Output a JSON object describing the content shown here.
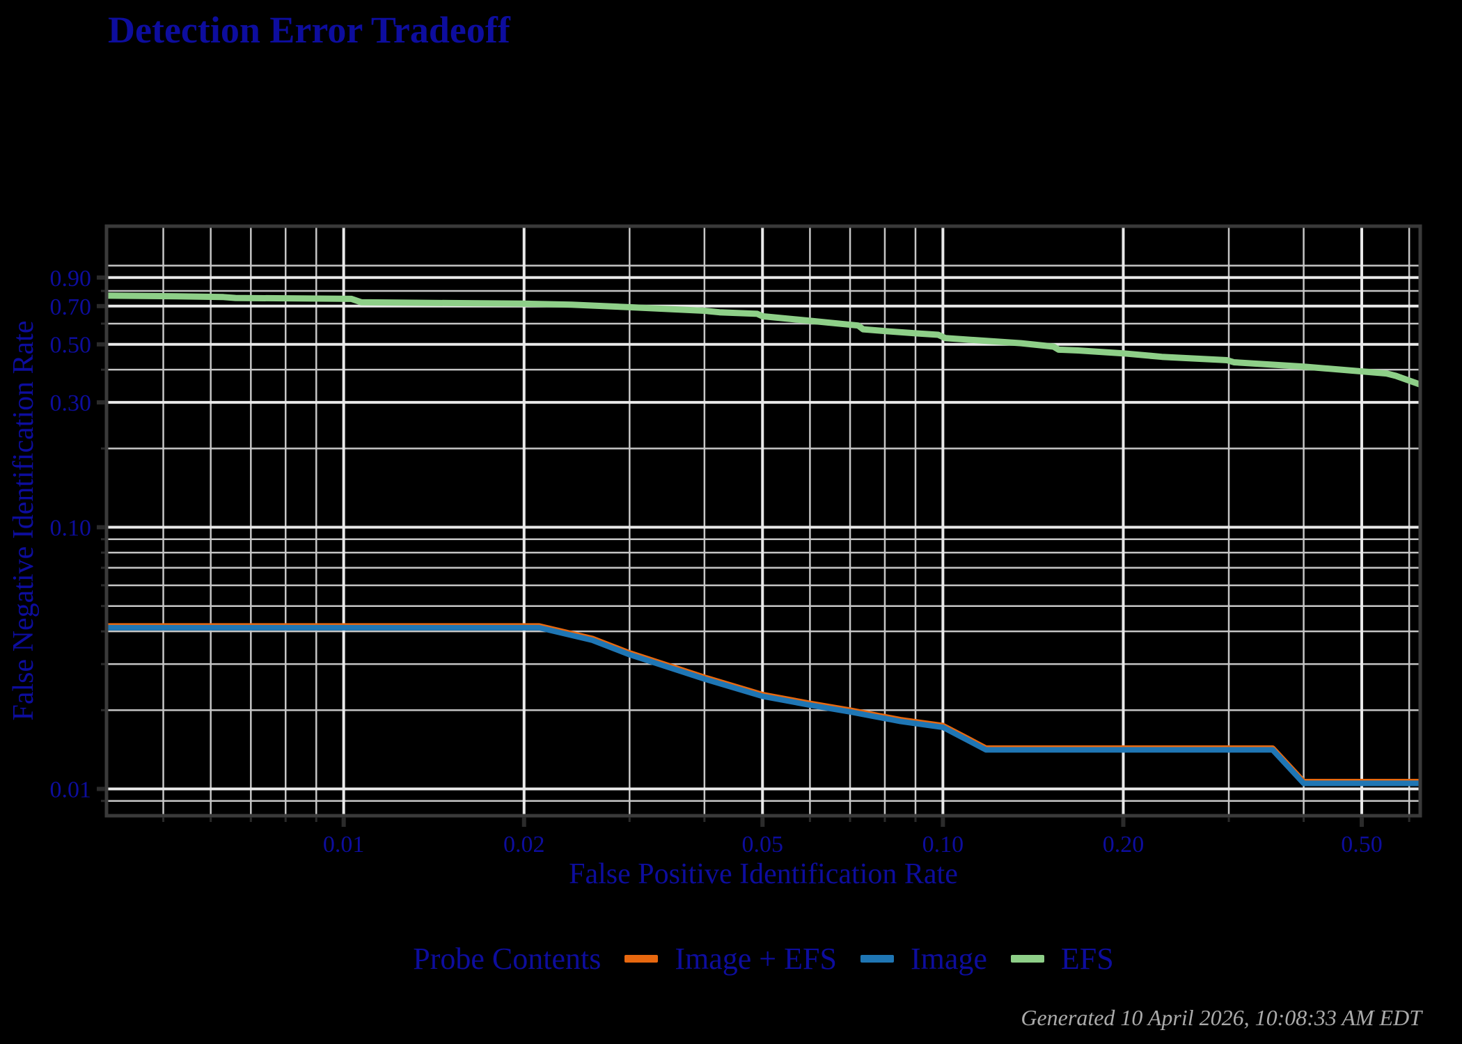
{
  "title": "Detection Error Tradeoff",
  "footer": "Generated 10 April 2026, 10:08:33 AM EDT",
  "colors": {
    "background": "#000000",
    "text_navy": "#0d0d9e",
    "footer_gray": "#ababab",
    "grid_major": "#e9e9e9",
    "grid_minor": "#c6c6c6",
    "axis_border": "#3a3a3a",
    "tick": "#2b2b2b",
    "series_image_efs": "#e8680f",
    "series_image": "#1f76b4",
    "series_efs": "#8ecf88"
  },
  "legend": {
    "title": "Probe Contents",
    "items": [
      {
        "label": "Image + EFS",
        "color": "#e8680f"
      },
      {
        "label": "Image",
        "color": "#1f76b4"
      },
      {
        "label": "EFS",
        "color": "#8ecf88"
      }
    ]
  },
  "chart_data": {
    "type": "line",
    "title": "Detection Error Tradeoff",
    "xlabel": "False Positive Identification Rate",
    "ylabel": "False Negative Identification Rate",
    "x_scale": "log10",
    "y_scale": "log10",
    "xlim": [
      0.00402,
      0.626
    ],
    "ylim": [
      0.0079,
      1.414
    ],
    "grid": true,
    "legend_position": "bottom",
    "x_major_ticks": [
      0.01,
      0.02,
      0.05,
      0.1,
      0.2,
      0.5
    ],
    "x_major_labels": [
      "0.01",
      "0.02",
      "0.05",
      "0.10",
      "0.20",
      "0.50"
    ],
    "x_minor_ticks": [
      0.005,
      0.006,
      0.007,
      0.008,
      0.009,
      0.03,
      0.04,
      0.06,
      0.07,
      0.08,
      0.09,
      0.3,
      0.4,
      0.6
    ],
    "y_major_ticks": [
      0.9,
      0.7,
      0.5,
      0.3,
      0.1,
      0.01
    ],
    "y_major_labels": [
      "0.90",
      "0.70",
      "0.50",
      "0.30",
      "0.10",
      "0.01"
    ],
    "y_minor_ticks": [
      1.0,
      0.8,
      0.6,
      0.4,
      0.2,
      0.09,
      0.08,
      0.07,
      0.06,
      0.05,
      0.04,
      0.03,
      0.02,
      0.009
    ],
    "series": [
      {
        "name": "Image + EFS",
        "color": "#e8680f",
        "note": "curve coincides with the Image curve and is hidden beneath it; only a thin sliver shows along the top edge",
        "points": [
          [
            0.00402,
            0.0413
          ],
          [
            0.0212,
            0.0413
          ],
          [
            0.026,
            0.037
          ],
          [
            0.03,
            0.0326
          ],
          [
            0.04,
            0.0263
          ],
          [
            0.05,
            0.0226
          ],
          [
            0.06,
            0.0209
          ],
          [
            0.07,
            0.0197
          ],
          [
            0.085,
            0.0181
          ],
          [
            0.1,
            0.0172
          ],
          [
            0.108,
            0.0157
          ],
          [
            0.118,
            0.0141
          ],
          [
            0.355,
            0.0141
          ],
          [
            0.4,
            0.0105
          ],
          [
            0.626,
            0.0105
          ]
        ]
      },
      {
        "name": "Image",
        "color": "#1f76b4",
        "points": [
          [
            0.00402,
            0.0413
          ],
          [
            0.0212,
            0.0413
          ],
          [
            0.026,
            0.037
          ],
          [
            0.03,
            0.0326
          ],
          [
            0.04,
            0.0263
          ],
          [
            0.05,
            0.0226
          ],
          [
            0.06,
            0.0209
          ],
          [
            0.07,
            0.0197
          ],
          [
            0.085,
            0.0181
          ],
          [
            0.1,
            0.0172
          ],
          [
            0.108,
            0.0157
          ],
          [
            0.118,
            0.0141
          ],
          [
            0.355,
            0.0141
          ],
          [
            0.4,
            0.0105
          ],
          [
            0.626,
            0.0105
          ]
        ]
      },
      {
        "name": "EFS",
        "color": "#8ecf88",
        "points": [
          [
            0.00402,
            0.768
          ],
          [
            0.0054,
            0.762
          ],
          [
            0.0063,
            0.758
          ],
          [
            0.0066,
            0.752
          ],
          [
            0.0103,
            0.746
          ],
          [
            0.0107,
            0.724
          ],
          [
            0.015,
            0.719
          ],
          [
            0.02,
            0.715
          ],
          [
            0.024,
            0.709
          ],
          [
            0.03,
            0.693
          ],
          [
            0.04,
            0.672
          ],
          [
            0.0424,
            0.663
          ],
          [
            0.049,
            0.654
          ],
          [
            0.05,
            0.64
          ],
          [
            0.06,
            0.615
          ],
          [
            0.0722,
            0.59
          ],
          [
            0.0736,
            0.571
          ],
          [
            0.08,
            0.562
          ],
          [
            0.09,
            0.551
          ],
          [
            0.0982,
            0.544
          ],
          [
            0.101,
            0.528
          ],
          [
            0.135,
            0.505
          ],
          [
            0.153,
            0.49
          ],
          [
            0.156,
            0.477
          ],
          [
            0.168,
            0.474
          ],
          [
            0.2,
            0.462
          ],
          [
            0.232,
            0.448
          ],
          [
            0.298,
            0.435
          ],
          [
            0.306,
            0.427
          ],
          [
            0.4,
            0.411
          ],
          [
            0.5,
            0.394
          ],
          [
            0.55,
            0.387
          ],
          [
            0.57,
            0.379
          ],
          [
            0.626,
            0.351
          ]
        ]
      }
    ]
  }
}
